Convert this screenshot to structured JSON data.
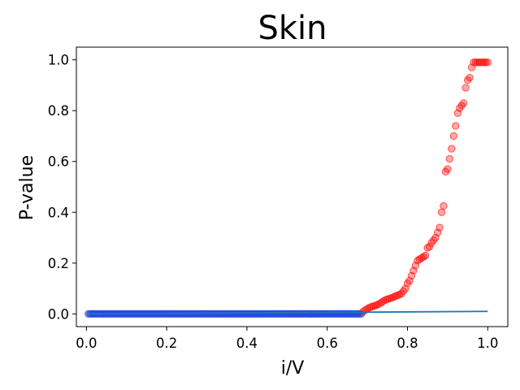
{
  "chart_data": {
    "type": "scatter",
    "title": "Skin",
    "xlabel": "i/V",
    "ylabel": "P-value",
    "xlim": [
      -0.025,
      1.05
    ],
    "ylim": [
      -0.05,
      1.05
    ],
    "xticks": [
      "0.0",
      "0.2",
      "0.4",
      "0.6",
      "0.8",
      "1.0"
    ],
    "yticks": [
      "0.0",
      "0.2",
      "0.4",
      "0.6",
      "0.8",
      "1.0"
    ],
    "grid": false,
    "colors": {
      "significant": "#ff0000",
      "not_significant": "#1f3fe0",
      "line": "#1f77b4"
    },
    "line": {
      "x": [
        0.0,
        1.0
      ],
      "y": [
        0.0,
        0.01
      ]
    },
    "significant_points": {
      "x": [
        0.69,
        0.695,
        0.7,
        0.705,
        0.71,
        0.715,
        0.72,
        0.725,
        0.73,
        0.735,
        0.74,
        0.745,
        0.75,
        0.755,
        0.76,
        0.765,
        0.77,
        0.775,
        0.78,
        0.785,
        0.79,
        0.795,
        0.8,
        0.805,
        0.81,
        0.815,
        0.82,
        0.825,
        0.83,
        0.835,
        0.84,
        0.845,
        0.85,
        0.855,
        0.86,
        0.865,
        0.87,
        0.875,
        0.88,
        0.885,
        0.89,
        0.895,
        0.9,
        0.905,
        0.91,
        0.915,
        0.92,
        0.925,
        0.93,
        0.935,
        0.94,
        0.945,
        0.95,
        0.955,
        0.96,
        0.965,
        0.97,
        0.975,
        0.98,
        0.985,
        0.99,
        0.995,
        1.0
      ],
      "y": [
        0.01,
        0.015,
        0.02,
        0.025,
        0.028,
        0.03,
        0.033,
        0.036,
        0.04,
        0.045,
        0.05,
        0.055,
        0.058,
        0.06,
        0.063,
        0.066,
        0.07,
        0.073,
        0.076,
        0.08,
        0.09,
        0.1,
        0.12,
        0.13,
        0.15,
        0.17,
        0.19,
        0.21,
        0.215,
        0.22,
        0.225,
        0.23,
        0.26,
        0.265,
        0.28,
        0.29,
        0.3,
        0.32,
        0.34,
        0.4,
        0.425,
        0.56,
        0.57,
        0.61,
        0.65,
        0.7,
        0.74,
        0.79,
        0.81,
        0.82,
        0.83,
        0.89,
        0.92,
        0.93,
        0.97,
        0.99,
        0.99,
        0.99,
        0.99,
        0.99,
        0.99,
        0.99,
        0.99
      ]
    },
    "not_significant_points": {
      "x_start": 0.005,
      "x_end": 0.685,
      "count": 137,
      "y": 0.0
    }
  }
}
